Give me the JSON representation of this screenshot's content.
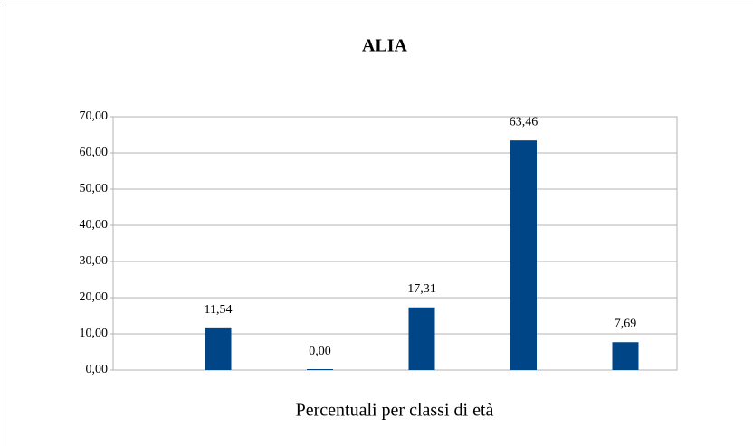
{
  "chart_data": {
    "type": "bar",
    "title": "ALIA",
    "x_label": "Percentuali per classi di età",
    "categories": [
      null,
      null,
      null,
      null,
      null
    ],
    "values": [
      11.54,
      0,
      17.31,
      63.46,
      7.69
    ],
    "value_labels": [
      "11,54",
      "0,00",
      "17,31",
      "63,46",
      "7,69"
    ],
    "color": "#004586",
    "ylim": [
      0,
      70
    ],
    "yticks": [
      {
        "value": 0,
        "label": "0,00"
      },
      {
        "value": 10,
        "label": "10,00"
      },
      {
        "value": 20,
        "label": "20,00"
      },
      {
        "value": 30,
        "label": "30,00"
      },
      {
        "value": 40,
        "label": "40,00"
      },
      {
        "value": 50,
        "label": "50,00"
      },
      {
        "value": 60,
        "label": "60,00"
      },
      {
        "value": 70,
        "label": "70,00"
      }
    ],
    "grid": true
  }
}
